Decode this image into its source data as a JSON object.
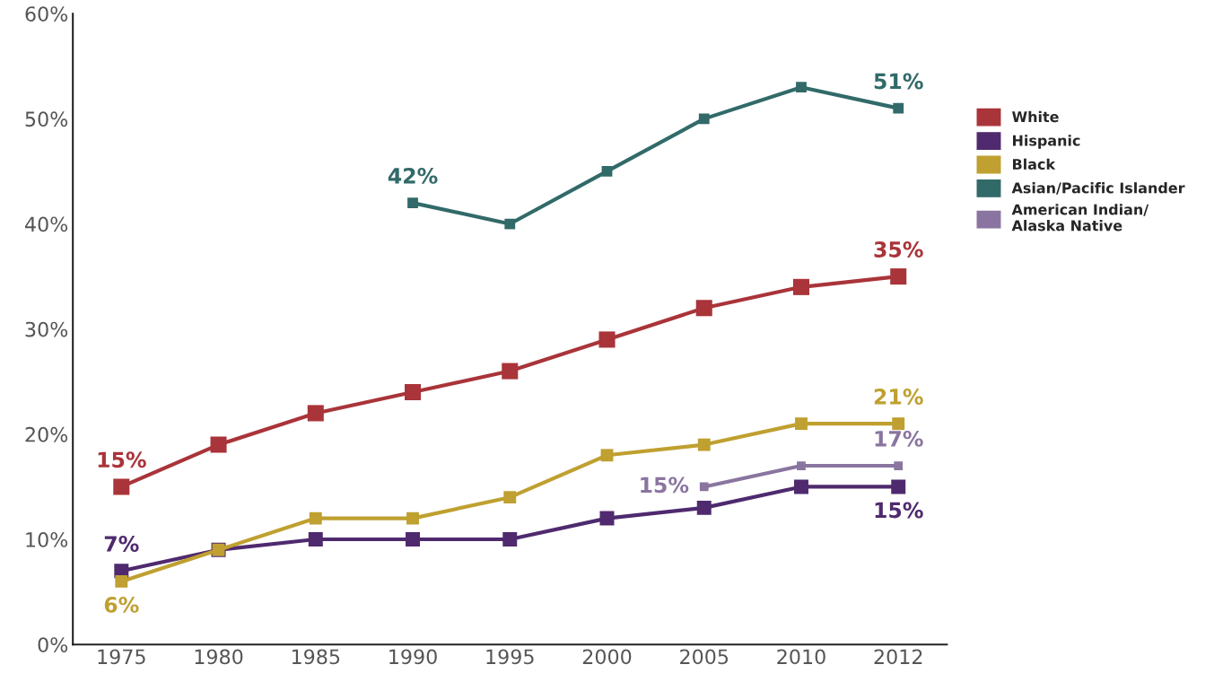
{
  "chart_data": {
    "type": "line",
    "categories": [
      "1975",
      "1980",
      "1985",
      "1990",
      "1995",
      "2000",
      "2005",
      "2010",
      "2012"
    ],
    "ylim": [
      0,
      60
    ],
    "yticks": [
      {
        "value": 0,
        "label": "0%"
      },
      {
        "value": 10,
        "label": "10%"
      },
      {
        "value": 20,
        "label": "20%"
      },
      {
        "value": 30,
        "label": "30%"
      },
      {
        "value": 40,
        "label": "40%"
      },
      {
        "value": 50,
        "label": "50%"
      },
      {
        "value": 60,
        "label": "60%"
      }
    ],
    "marker": "square",
    "grid": false,
    "legend": "right",
    "series": [
      {
        "name": "White",
        "color": "#a93439",
        "values": [
          15,
          19,
          22,
          24,
          26,
          29,
          32,
          34,
          35
        ],
        "value_labels": [
          "15%",
          null,
          null,
          null,
          null,
          null,
          null,
          null,
          "35%"
        ]
      },
      {
        "name": "Hispanic",
        "color": "#4f2a6e",
        "values": [
          7,
          9,
          10,
          10,
          10,
          12,
          13,
          15,
          15
        ],
        "value_labels": [
          "7%",
          null,
          null,
          null,
          null,
          null,
          null,
          null,
          "15%"
        ]
      },
      {
        "name": "Black",
        "color": "#bfa030",
        "values": [
          6,
          9,
          12,
          12,
          14,
          18,
          19,
          21,
          21
        ],
        "value_labels": [
          "6%",
          null,
          null,
          null,
          null,
          null,
          null,
          null,
          "21%"
        ]
      },
      {
        "name": "Asian/Pacific Islander",
        "color": "#316a69",
        "values": [
          null,
          null,
          null,
          42,
          40,
          45,
          50,
          53,
          51
        ],
        "value_labels": [
          null,
          null,
          null,
          "42%",
          null,
          null,
          null,
          null,
          "51%"
        ]
      },
      {
        "name": "American Indian/\nAlaska Native",
        "color": "#8a75a0",
        "values": [
          null,
          null,
          null,
          null,
          null,
          null,
          15,
          17,
          17
        ],
        "value_labels": [
          null,
          null,
          null,
          null,
          null,
          null,
          "15%",
          null,
          "17%"
        ]
      }
    ]
  }
}
